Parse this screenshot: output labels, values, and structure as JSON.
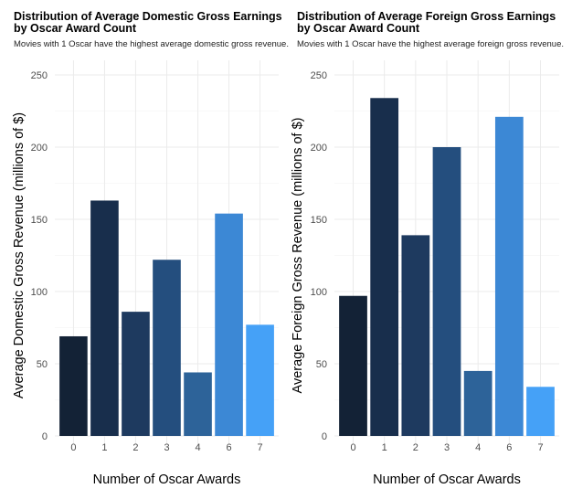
{
  "chart_data": [
    {
      "type": "bar",
      "title": "Distribution of Average Domestic Gross Earnings by Oscar Award Count",
      "subtitle": "Movies with 1 Oscar have the highest average domestic gross revenue.",
      "xlabel": "Number of Oscar Awards",
      "ylabel": "Average Domestic Gross Revenue (millions of $)",
      "categories": [
        "0",
        "1",
        "2",
        "3",
        "4",
        "6",
        "7"
      ],
      "values": [
        69,
        163,
        86,
        122,
        44,
        154,
        77
      ],
      "colors": [
        "#132236",
        "#182e4c",
        "#1e3a5f",
        "#244e7e",
        "#2d6399",
        "#3c88d5",
        "#45a1f7"
      ],
      "ylim": [
        0,
        250
      ],
      "yticks": [
        0,
        50,
        100,
        150,
        200,
        250
      ],
      "grid": true,
      "legend": "none"
    },
    {
      "type": "bar",
      "title": "Distribution of Average Foreign Gross Earnings by Oscar Award Count",
      "subtitle": "Movies with 1 Oscar have the highest average foreign gross revenue.",
      "xlabel": "Number of Oscar Awards",
      "ylabel": "Average Foreign Gross Revenue (millions of $)",
      "categories": [
        "0",
        "1",
        "2",
        "3",
        "4",
        "6",
        "7"
      ],
      "values": [
        97,
        234,
        139,
        200,
        45,
        221,
        34
      ],
      "colors": [
        "#132236",
        "#182e4c",
        "#1e3a5f",
        "#244e7e",
        "#2d6399",
        "#3c88d5",
        "#45a1f7"
      ],
      "ylim": [
        0,
        250
      ],
      "yticks": [
        0,
        50,
        100,
        150,
        200,
        250
      ],
      "grid": true,
      "legend": "none"
    }
  ]
}
